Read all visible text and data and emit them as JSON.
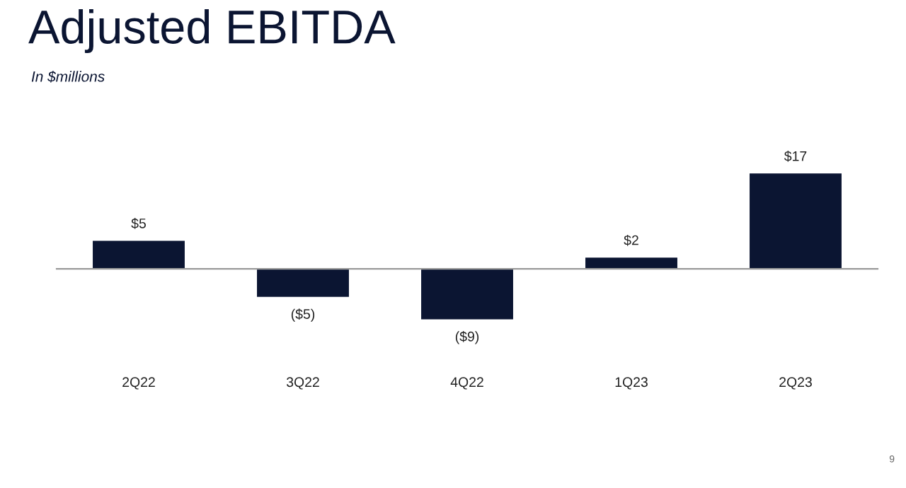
{
  "chart_data": {
    "type": "bar",
    "title": "Adjusted EBITDA",
    "subtitle": "In $millions",
    "categories": [
      "2Q22",
      "3Q22",
      "4Q22",
      "1Q23",
      "2Q23"
    ],
    "values": [
      5,
      -5,
      -9,
      2,
      17
    ],
    "value_labels": [
      "$5",
      "($5)",
      "($9)",
      "$2",
      "$17"
    ],
    "color": "#0b1532",
    "grid": false,
    "legend": false,
    "annotations": [
      "9"
    ]
  }
}
